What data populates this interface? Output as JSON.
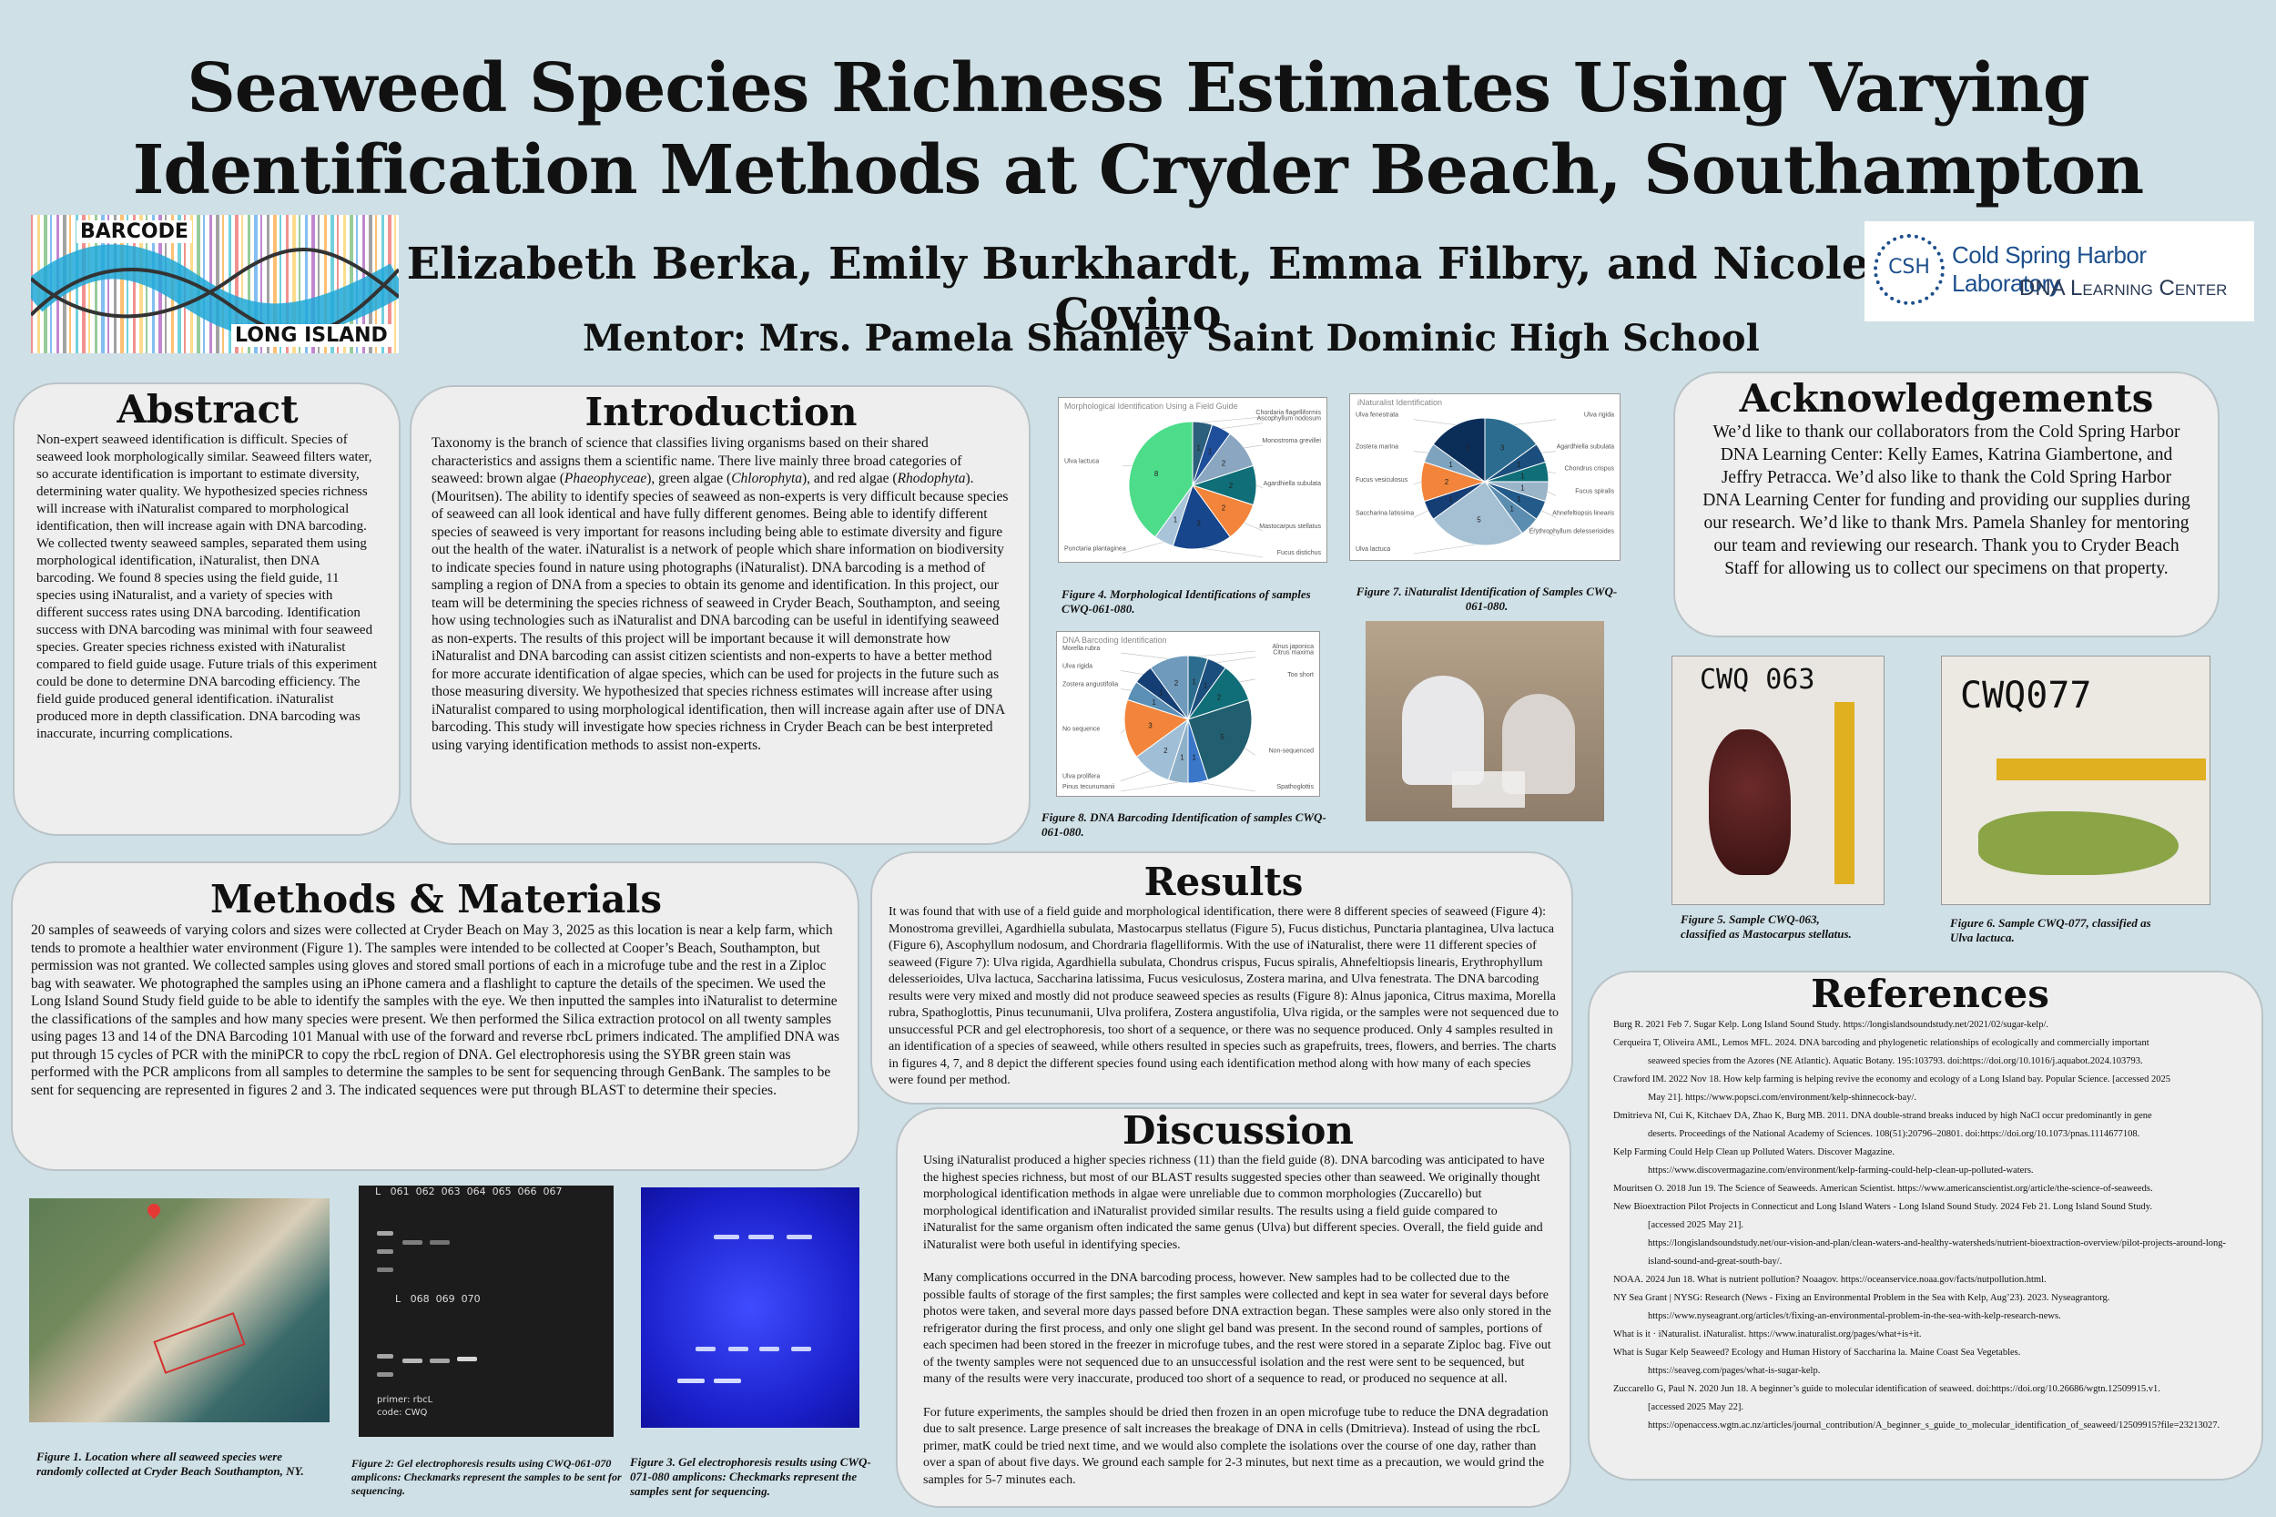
{
  "header": {
    "title_line1": "Seaweed Species Richness Estimates Using Varying",
    "title_line2": "Identification Methods at Cryder Beach, Southampton",
    "authors": "Elizabeth Berka, Emily Burkhardt, Emma Filbry, and Nicole Covino",
    "mentor": "Mentor: Mrs. Pamela Shanley",
    "school": "Saint Dominic High School"
  },
  "logos": {
    "left_top": "BARCODE",
    "left_bottom": "LONG ISLAND",
    "right_mark": "CSH",
    "right_line1": "Cold Spring Harbor Laboratory",
    "right_line2": "DNA Learning Center"
  },
  "abstract": {
    "heading": "Abstract",
    "text": "Non-expert seaweed identification is difficult. Species of seaweed look morphologically similar. Seaweed filters water, so accurate identification is important to estimate diversity, determining water quality. We hypothesized species richness will increase with iNaturalist compared to morphological identification, then will increase again with DNA barcoding. We collected twenty seaweed samples, separated them using morphological identification, iNaturalist, then DNA barcoding. We found 8 species using the field guide, 11 species using iNaturalist, and a variety of species with different success rates using DNA barcoding. Identification success with DNA barcoding was minimal with four seaweed species. Greater species richness existed with iNaturalist compared to field guide usage. Future trials of this experiment could be done to determine DNA barcoding efficiency. The field guide produced general identification. iNaturalist produced more in depth classification. DNA barcoding was inaccurate, incurring complications."
  },
  "introduction": {
    "heading": "Introduction",
    "p1": "Taxonomy is the branch of science that classifies living organisms based on their shared characteristics and assigns them a scientific name. There live mainly three broad categories of seaweed: brown algae (",
    "i1": "Phaeophyceae",
    "p2": "), green algae (",
    "i2": "Chlorophyta",
    "p3": "), and red algae (",
    "i3": "Rhodophyta",
    "p4": "). (Mouritsen). The ability to identify species of seaweed as non-experts is very difficult because species of seaweed can all look identical and have fully different genomes. Being able to identify different species of seaweed is very important for reasons including being able to estimate diversity and figure out the health of the water. iNaturalist is a network of people which share information on biodiversity to indicate species found in nature using photographs (iNaturalist). DNA barcoding is a method of sampling a region of DNA from a species to obtain its genome and identification. In this project, our team will be determining the species richness of seaweed in Cryder Beach, Southampton, and seeing how using technologies such as iNaturalist and DNA barcoding can be useful in identifying seaweed as non-experts. The results of this project will be important because it will demonstrate how iNaturalist and DNA barcoding can assist citizen scientists and non-experts to have a better method for more accurate identification  of algae species, which can be used for projects in the future such as those measuring diversity. We hypothesized that species richness estimates will increase after using iNaturalist compared to using morphological identification, then will increase again after use of DNA barcoding. This study will investigate how species richness in Cryder Beach can be best interpreted using varying identification methods to assist non-experts."
  },
  "methods": {
    "heading": "Methods & Materials",
    "text": "20 samples of seaweeds of varying colors and sizes were collected at Cryder Beach on May 3, 2025 as this location is near a kelp farm, which tends to promote a healthier water environment (Figure 1). The samples were intended to be collected at Cooper’s Beach, Southampton, but permission was not granted. We collected samples using gloves and stored small portions of each in a microfuge tube and the rest in a Ziploc bag with seawater. We photographed the samples using an iPhone camera and a flashlight to capture the details of the specimen. We used the Long Island Sound Study field guide to be able to identify the samples with the eye. We then inputted the samples into iNaturalist to determine the classifications of the samples and how many species were present. We then performed the Silica extraction protocol on all twenty samples using pages 13 and 14 of the DNA Barcoding 101 Manual with use of the forward and reverse rbcL primers indicated. The amplified DNA was put through 15 cycles of PCR with the miniPCR to copy the rbcL region of DNA. Gel electrophoresis using the SYBR green stain was performed with the PCR amplicons from all samples to determine the samples to be sent for sequencing through GenBank. The samples to be sent for sequencing are represented in figures 2 and 3. The indicated sequences were put through BLAST to determine their species."
  },
  "results": {
    "heading": "Results",
    "text": "It was found that with use of a field guide and morphological identification, there were 8 different species of seaweed (Figure 4): Monostroma grevillei, Agardhiella subulata, Mastocarpus stellatus (Figure 5), Fucus distichus, Punctaria plantaginea, Ulva lactuca (Figure 6), Ascophyllum nodosum, and Chordraria flagelliformis. With the use of iNaturalist, there were 11 different species of seaweed (Figure 7): Ulva rigida, Agardhiella subulata, Chondrus crispus, Fucus spiralis, Ahnefeltiopsis linearis, Erythrophyllum delesserioides, Ulva lactuca, Saccharina latissima, Fucus vesiculosus, Zostera marina, and Ulva fenestrata. The DNA barcoding results were very mixed and mostly did not produce seaweed species as results (Figure 8): Alnus japonica, Citrus maxima, Morella rubra, Spathoglottis, Pinus tecunumanii, Ulva prolifera, Zostera angustifolia, Ulva rigida, or the samples were not sequenced due to unsuccessful PCR and gel electrophoresis, too short of a sequence, or there was no sequence produced. Only 4 samples resulted in an identification of a species of seaweed, while others resulted in species such as grapefruits, trees, flowers, and berries. The charts in figures 4, 7, and 8 depict the different species found using each identification method along with how many of each species were found per method."
  },
  "discussion": {
    "heading": "Discussion",
    "p1": "Using iNaturalist produced a higher species richness (11) than the field guide (8). DNA barcoding was anticipated to have the highest species richness, but most of our BLAST results suggested species other than seaweed. We originally thought morphological identification methods in algae were unreliable due to common morphologies (Zuccarello) but morphological identification and iNaturalist provided similar results. The results using a field guide compared to iNaturalist for the same organism often indicated the same genus (Ulva) but different species. Overall, the field guide and iNaturalist were both useful in identifying species.",
    "p2": "Many complications occurred in the DNA barcoding process, however. New samples had to be collected due to the possible faults of storage of the first samples; the first samples were collected and kept in sea water for several days before photos were taken, and several more days passed before DNA extraction began. These samples were also only stored in the refrigerator during the first process, and only one slight gel band was present. In the second round of samples, portions of each specimen had been stored in the freezer in microfuge tubes, and the rest were stored in a separate Ziploc bag. Five out of the twenty samples were not sequenced due to an unsuccessful isolation and the rest were sent to be sequenced, but many of the results were very inaccurate, produced too short of a sequence to read, or produced no sequence at all.",
    "p3": "For future experiments, the samples should be dried then frozen in an open microfuge tube to reduce the DNA degradation due to salt presence. Large presence of salt increases the breakage of DNA in cells (Dmitrieva). Instead of using the rbcL primer, matK could be tried next time, and we would also complete the isolations over the course of one day, rather than over a span of about five days. We ground each sample for 2-3 minutes, but next time as a precaution, we would grind the samples for 5-7 minutes each."
  },
  "acknowledgements": {
    "heading": "Acknowledgements",
    "text": "We’d like to thank our collaborators from the Cold Spring Harbor DNA Learning Center: Kelly Eames, Katrina Giambertone, and Jeffry Petracca. We’d also like to thank the Cold Spring Harbor DNA Learning Center for funding and providing our supplies during our research. We’d like to thank Mrs. Pamela Shanley for mentoring our team and reviewing our research. Thank you to Cryder Beach Staff for allowing us to collect our specimens on that property."
  },
  "references": {
    "heading": "References",
    "items": [
      {
        "main": "Burg R. 2021 Feb 7. Sugar Kelp. Long Island Sound Study. https://longislandsoundstudy.net/2021/02/sugar-kelp/.",
        "cont": ""
      },
      {
        "main": "Cerqueira T, Oliveira AML, Lemos MFL. 2024. DNA barcoding and phylogenetic relationships of ecologically and commercially important",
        "cont": "seaweed species from the Azores (NE Atlantic). Aquatic Botany. 195:103793. doi:https://doi.org/10.1016/j.aquabot.2024.103793."
      },
      {
        "main": "Crawford IM. 2022 Nov 18. How kelp farming is helping revive the economy and ecology of a Long Island bay. Popular Science. [accessed 2025",
        "cont": "May 21]. https://www.popsci.com/environment/kelp-shinnecock-bay/."
      },
      {
        "main": "Dmitrieva NI, Cui K, Kitchaev DA, Zhao K, Burg MB. 2011. DNA double-strand breaks induced by high NaCl occur predominantly in gene",
        "cont": "deserts. Proceedings of the National Academy of Sciences. 108(51):20796–20801. doi:https://doi.org/10.1073/pnas.1114677108."
      },
      {
        "main": "Kelp Farming Could Help Clean up Polluted Waters. Discover Magazine.",
        "cont": "https://www.discovermagazine.com/environment/kelp-farming-could-help-clean-up-polluted-waters."
      },
      {
        "main": " Mouritsen O. 2018 Jun 19. The Science of Seaweeds. American Scientist. https://www.americanscientist.org/article/the-science-of-seaweeds.",
        "cont": ""
      },
      {
        "main": "New Bioextraction Pilot Projects in Connecticut and Long Island Waters - Long Island Sound Study. 2024 Feb 21. Long Island Sound Study.",
        "cont": "[accessed 2025 May 21]."
      },
      {
        "main": "",
        "cont": "https://longislandsoundstudy.net/our-vision-and-plan/clean-waters-and-healthy-watersheds/nutrient-bioextraction-overview/pilot-projects-around-long-island-sound-and-great-south-bay/."
      },
      {
        "main": "NOAA. 2024 Jun 18. What is nutrient pollution? Noaagov. https://oceanservice.noaa.gov/facts/nutpollution.html.",
        "cont": ""
      },
      {
        "main": "NY Sea Grant | NYSG: Research (News - Fixing an Environmental Problem in the Sea with Kelp, Aug’23). 2023. Nyseagrantorg.",
        "cont": "https://www.nyseagrant.org/articles/t/fixing-an-environmental-problem-in-the-sea-with-kelp-research-news."
      },
      {
        "main": "What is it · iNaturalist. iNaturalist. https://www.inaturalist.org/pages/what+is+it.",
        "cont": ""
      },
      {
        "main": "What is Sugar Kelp Seaweed? Ecology and Human History of Saccharina la. Maine Coast Sea Vegetables.",
        "cont": "https://seaveg.com/pages/what-is-sugar-kelp."
      },
      {
        "main": "Zuccarello G, Paul N. 2020 Jun 18. A beginner’s guide to molecular identification of seaweed. doi:https://doi.org/10.26686/wgtn.12509915.v1.",
        "cont": "[accessed 2025 May 22]."
      },
      {
        "main": "",
        "cont": "https://openaccess.wgtn.ac.nz/articles/journal_contribution/A_beginner_s_guide_to_molecular_identification_of_seaweed/12509915?file=23213027."
      }
    ]
  },
  "figures": {
    "fig1": "Figure 1. Location where all seaweed species were randomly collected at Cryder Beach Southampton, NY.",
    "fig2": "Figure 2: Gel electrophoresis results using CWQ-061-070 amplicons: Checkmarks represent the samples to be sent for sequencing.",
    "fig3": "Figure 3. Gel electrophoresis results using CWQ-071-080 amplicons: Checkmarks represent the samples sent for sequencing.",
    "fig4": "Figure 4. Morphological Identifications of samples CWQ-061-080.",
    "fig5": "Figure 5. Sample CWQ-063, classified as Mastocarpus stellatus.",
    "fig6": "Figure 6. Sample CWQ-077, classified as Ulva lactuca.",
    "fig7": "Figure 7. iNaturalist Identification of Samples CWQ-061-080.",
    "fig8": "Figure 8. DNA Barcoding Identification of samples CWQ-061-080."
  },
  "gels": {
    "gel2_lanes_top": "L   061  062  063  064  065  066  067",
    "gel2_lanes_bottom": "L   068  069  070",
    "gel2_note1": "primer: rbcL",
    "gel2_note2": "code: CWQ"
  },
  "samples": {
    "label5": "CWQ 063",
    "label6": "CWQ077"
  },
  "chart_data": [
    {
      "type": "pie",
      "title": "Morphological Identification Using a Field Guide",
      "series": [
        {
          "name": "Chordaria flagelliformis",
          "value": 1
        },
        {
          "name": "Ascophyllum nodosum",
          "value": 1
        },
        {
          "name": "Monostroma grevillei",
          "value": 2
        },
        {
          "name": "Agardhiella subulata",
          "value": 2
        },
        {
          "name": "Mastocarpus stellatus",
          "value": 2
        },
        {
          "name": "Fucus distichus",
          "value": 3
        },
        {
          "name": "Punctaria plantaginea",
          "value": 1
        },
        {
          "name": "Ulva lactuca",
          "value": 8
        }
      ],
      "colors": [
        "#2c5f7c",
        "#1f4e9a",
        "#8aa6c0",
        "#0f6e78",
        "#f2853b",
        "#17468c",
        "#a9c4d9",
        "#4cdc8a"
      ]
    },
    {
      "type": "pie",
      "title": "iNaturalist Identification",
      "series": [
        {
          "name": "Ulva rigida",
          "value": 3
        },
        {
          "name": "Agardhiella subulata",
          "value": 1
        },
        {
          "name": "Chondrus crispus",
          "value": 1
        },
        {
          "name": "Fucus spiralis",
          "value": 1
        },
        {
          "name": "Ahnefeltiopsis linearis",
          "value": 1
        },
        {
          "name": "Erythrophyllum delesserioides",
          "value": 1
        },
        {
          "name": "Ulva lactuca",
          "value": 5
        },
        {
          "name": "Saccharina latissima",
          "value": 1
        },
        {
          "name": "Fucus vesiculosus",
          "value": 2
        },
        {
          "name": "Zostera marina",
          "value": 1
        },
        {
          "name": "Ulva fenestrata",
          "value": 3
        }
      ],
      "colors": [
        "#2c6d8f",
        "#1b4e7d",
        "#0f6e78",
        "#9ab4c8",
        "#225a8a",
        "#5a8db0",
        "#a5bfd3",
        "#153e75",
        "#f2853b",
        "#7ea3bf",
        "#0b2e59"
      ]
    },
    {
      "type": "pie",
      "title": "DNA Barcoding Identification",
      "series": [
        {
          "name": "Alnus japonica",
          "value": 1
        },
        {
          "name": "Citrus maxima",
          "value": 1
        },
        {
          "name": "Too short",
          "value": 2
        },
        {
          "name": "Non-sequenced",
          "value": 5
        },
        {
          "name": "Spathoglottis",
          "value": 1
        },
        {
          "name": "Pinus tecunumanii",
          "value": 1
        },
        {
          "name": "Ulva prolifera",
          "value": 2
        },
        {
          "name": "No sequence",
          "value": 3
        },
        {
          "name": "Zostera angustifolia",
          "value": 1
        },
        {
          "name": "Ulva rigida",
          "value": 1
        },
        {
          "name": "Morella rubra",
          "value": 2
        }
      ],
      "colors": [
        "#2c6d8f",
        "#1b4e7d",
        "#0f6e78",
        "#215e70",
        "#3a77c9",
        "#8fb0c9",
        "#a0bfd6",
        "#f2853b",
        "#5b8fb5",
        "#153e75",
        "#6f9abb"
      ]
    }
  ]
}
